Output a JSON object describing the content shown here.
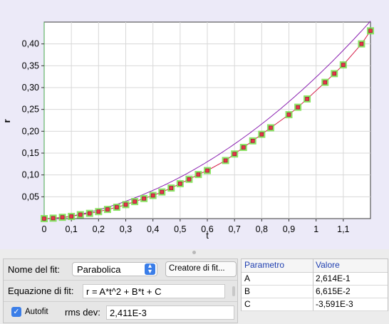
{
  "chart_data": {
    "type": "scatter",
    "xlabel": "t",
    "ylabel": "r",
    "xlim": [
      0,
      1.2
    ],
    "ylim": [
      0,
      0.45
    ],
    "x_ticks": [
      "0",
      "0,1",
      "0,2",
      "0,3",
      "0,4",
      "0,5",
      "0,6",
      "0,7",
      "0,8",
      "0,9",
      "1",
      "1,1"
    ],
    "x_tick_values": [
      0,
      0.1,
      0.2,
      0.3,
      0.4,
      0.5,
      0.6,
      0.7,
      0.8,
      0.9,
      1.0,
      1.1
    ],
    "y_ticks": [
      "0,05",
      "0,10",
      "0,15",
      "0,20",
      "0,25",
      "0,30",
      "0,35",
      "0,40"
    ],
    "y_tick_values": [
      0.05,
      0.1,
      0.15,
      0.2,
      0.25,
      0.3,
      0.35,
      0.4
    ],
    "grid": true,
    "series": [
      {
        "color": "#e8324a",
        "x": [
          0.0,
          0.033,
          0.067,
          0.1,
          0.133,
          0.167,
          0.2,
          0.233,
          0.267,
          0.3,
          0.333,
          0.367,
          0.4,
          0.433,
          0.467,
          0.5,
          0.533,
          0.567,
          0.6,
          0.667,
          0.7,
          0.733,
          0.767,
          0.8,
          0.833,
          0.9,
          0.933,
          0.967,
          1.033,
          1.067,
          1.1,
          1.167,
          1.2
        ],
        "y": [
          0.0,
          0.001,
          0.003,
          0.005,
          0.009,
          0.012,
          0.016,
          0.021,
          0.026,
          0.032,
          0.039,
          0.046,
          0.053,
          0.061,
          0.07,
          0.08,
          0.09,
          0.101,
          0.11,
          0.133,
          0.148,
          0.163,
          0.178,
          0.193,
          0.208,
          0.238,
          0.255,
          0.274,
          0.312,
          0.332,
          0.352,
          0.4,
          0.43
        ]
      }
    ],
    "fit_line_color": "#8a1fb0",
    "fit_marker_color": "#79df4c"
  },
  "fit_panel": {
    "fit_name_label": "Nome del fit:",
    "fit_name_value": "Parabolica",
    "fit_builder_button": "Creatore di fit...",
    "equation_label": "Equazione di fit:",
    "equation_value": "r = A*t^2 + B*t + C",
    "autofit_label": "Autofit",
    "autofit_checked": true,
    "rms_label": "rms dev:",
    "rms_value": "2,411E-3"
  },
  "params_table": {
    "headers": [
      "Parametro",
      "Valore"
    ],
    "rows": [
      {
        "name": "A",
        "value": "2,614E-1"
      },
      {
        "name": "B",
        "value": "6,615E-2"
      },
      {
        "name": "C",
        "value": "-3,591E-3"
      }
    ]
  },
  "colors": {
    "accent": "#3b7ee8",
    "plot_bg": "#ffffff",
    "panel_bg": "#eceaf8"
  }
}
